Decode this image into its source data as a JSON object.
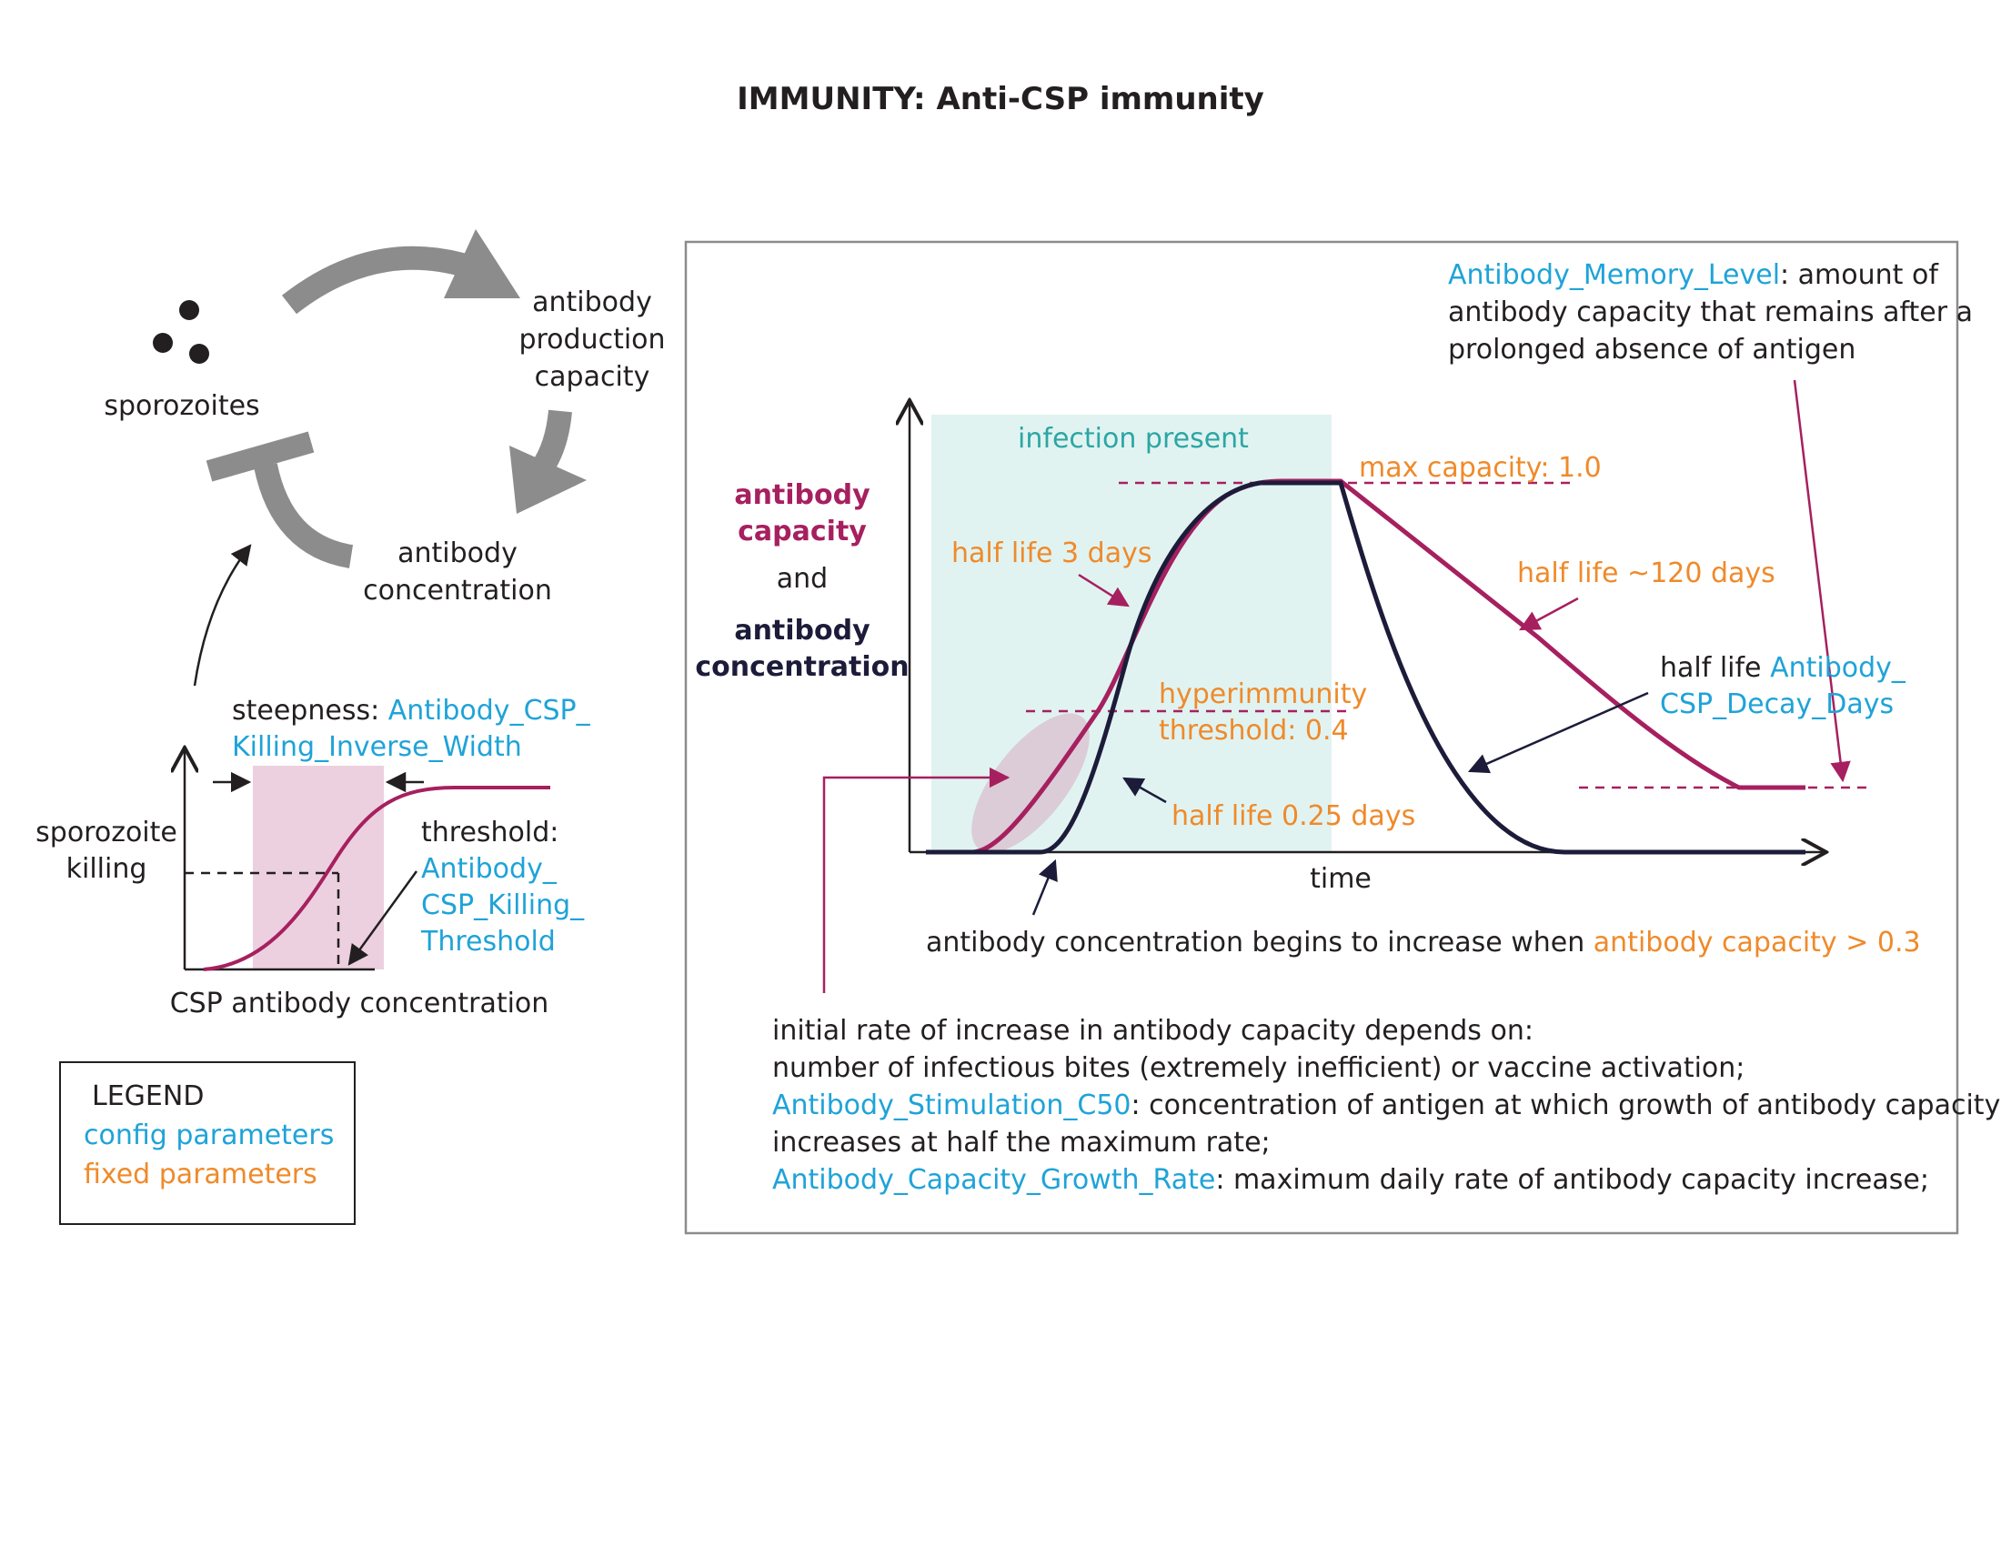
{
  "title": "IMMUNITY: Anti-CSP immunity",
  "colors": {
    "config": "#1fa3d8",
    "fixed": "#ef8a2a",
    "capacity": "#a6205f",
    "concentration": "#1c1c3a",
    "infection_region": "#e0f3f1",
    "arrow_gray": "#8c8c8c"
  },
  "cycle": {
    "sporozoites": "sporozoites",
    "production": [
      "antibody",
      "production",
      "capacity"
    ],
    "concentration": [
      "antibody",
      "concentration"
    ]
  },
  "killing": {
    "steepness_prefix": "steepness: ",
    "steepness_param_line1": "Antibody_CSP_",
    "steepness_param_line2": "Killing_Inverse_Width",
    "ylabel": [
      "sporozoite",
      "killing"
    ],
    "threshold_label": "threshold:",
    "threshold_param": [
      "Antibody_",
      "CSP_Killing_",
      "Threshold"
    ],
    "xlabel": "CSP antibody concentration"
  },
  "legend": {
    "title": "LEGEND",
    "config": "config parameters",
    "fixed": "fixed parameters"
  },
  "main": {
    "memory_param": "Antibody_Memory_Level",
    "memory_desc": [
      ": amount of",
      "antibody capacity that remains after a",
      "prolonged absence of antigen"
    ],
    "infection_present": "infection present",
    "ylabel_capacity": [
      "antibody",
      "capacity"
    ],
    "ylabel_and": "and",
    "ylabel_concentration": [
      "antibody",
      "concentration"
    ],
    "max_capacity": "max capacity: 1.0",
    "half_life_3": "half life 3 days",
    "half_life_120": "half life ~120 days",
    "hyperimmunity": [
      "hyperimmunity",
      "threshold: 0.4"
    ],
    "half_life_025": "half life 0.25 days",
    "decay_prefix": "half life ",
    "decay_param": [
      "Antibody_",
      "CSP_Decay_Days"
    ],
    "xlabel": "time",
    "conc_begins_prefix": "antibody concentration begins to increase when ",
    "conc_begins_param": "antibody capacity > 0.3",
    "rate_lines": [
      "initial rate of increase in antibody capacity depends on:",
      "number of infectious bites (extremely inefficient) or vaccine activation;"
    ],
    "stim_param": "Antibody_Stimulation_C50",
    "stim_desc": [
      ": concentration of antigen at which growth of antibody capacity",
      "increases at half the maximum rate;"
    ],
    "growth_param": "Antibody_Capacity_Growth_Rate",
    "growth_desc": ": maximum daily rate of antibody capacity increase;"
  }
}
